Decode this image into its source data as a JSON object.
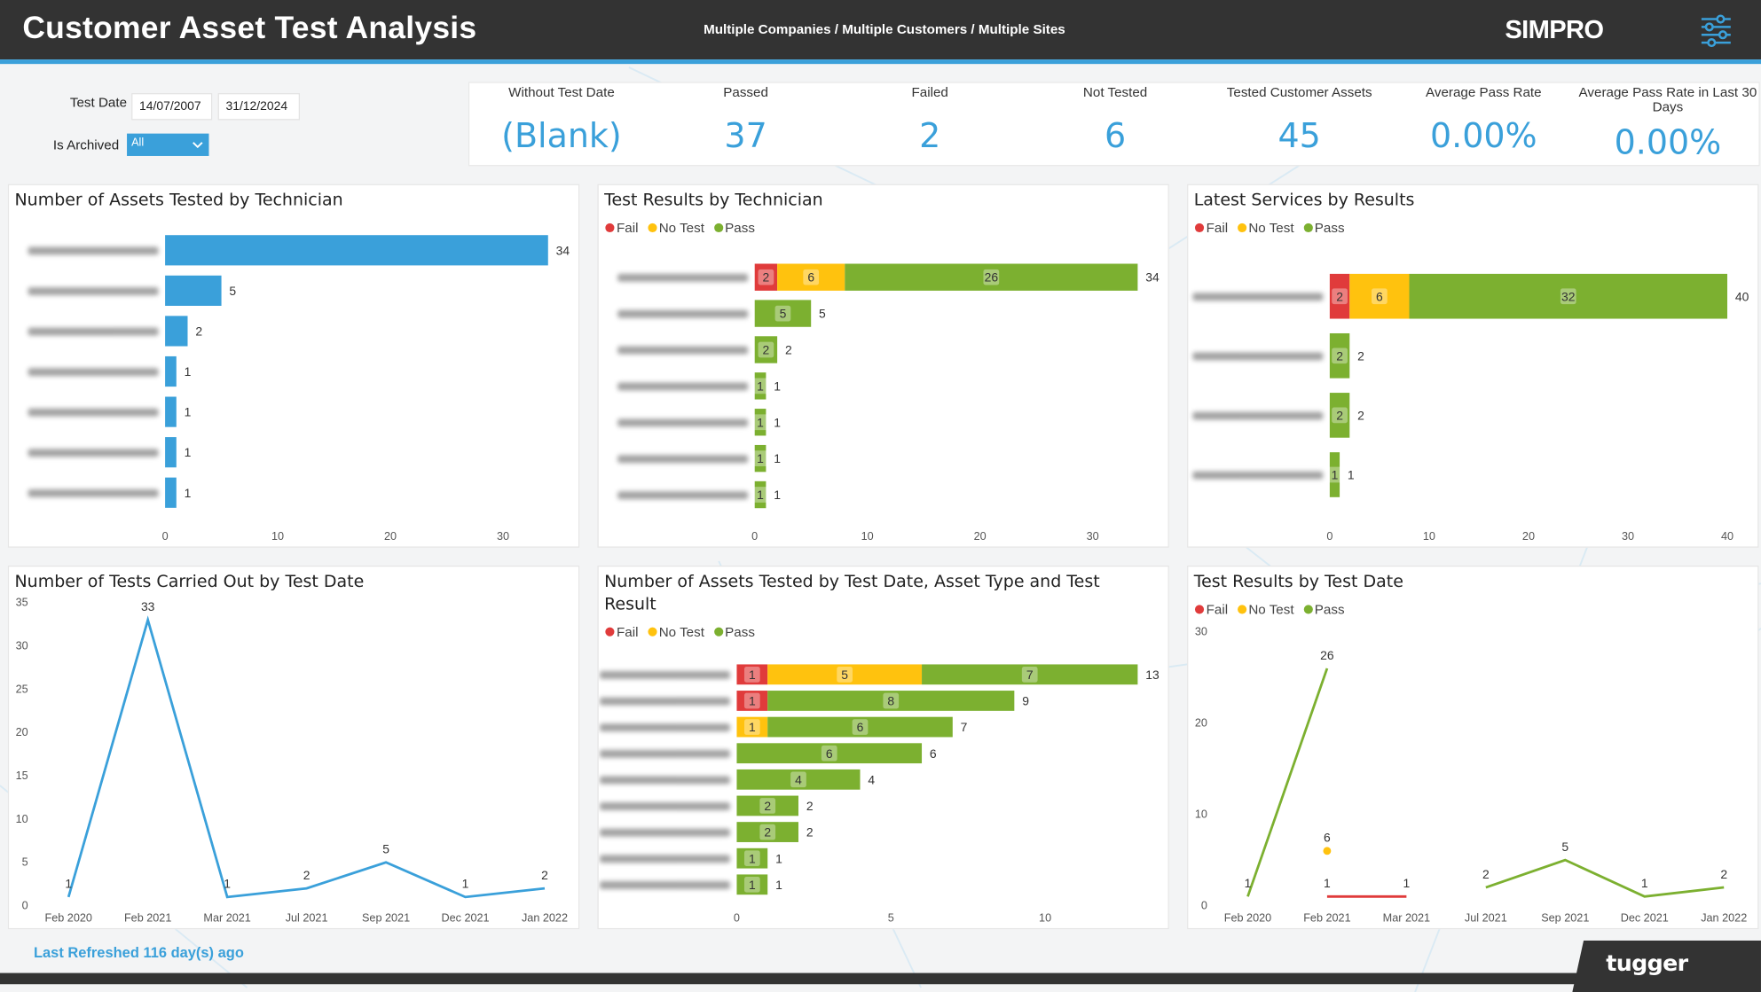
{
  "header": {
    "title": "Customer Asset Test Analysis",
    "filters": "Multiple Companies / Multiple Customers / Multiple Sites",
    "logo": "SIMPRO",
    "menu_icon": "sliders-icon"
  },
  "slicers": {
    "test_date_label": "Test Date",
    "date_from": "14/07/2007",
    "date_to": "31/12/2024",
    "archived_label": "Is Archived",
    "archived_value": "All"
  },
  "kpis": [
    {
      "label": "Without Test Date",
      "value": "(Blank)"
    },
    {
      "label": "Passed",
      "value": "37"
    },
    {
      "label": "Failed",
      "value": "2"
    },
    {
      "label": "Not Tested",
      "value": "6"
    },
    {
      "label": "Tested Customer Assets",
      "value": "45"
    },
    {
      "label": "Average Pass Rate",
      "value": "0.00%"
    },
    {
      "label": "Average Pass Rate in Last 30 Days",
      "value": "0.00%"
    }
  ],
  "colors": {
    "fail": "#e03b3b",
    "notest": "#ffc20e",
    "pass": "#7cb030",
    "blue": "#3aa0da"
  },
  "legend": {
    "fail": "Fail",
    "notest": "No Test",
    "pass": "Pass"
  },
  "footer": {
    "refresh": "Last Refreshed 116 day(s) ago",
    "brand": "tugger"
  },
  "chart_data": [
    {
      "type": "bar",
      "title": "Number of Assets Tested by Technician",
      "categories": [
        "",
        "",
        "",
        "",
        "",
        "",
        ""
      ],
      "values": [
        34,
        5,
        2,
        1,
        1,
        1,
        1
      ],
      "xlim": [
        0,
        34
      ],
      "xticks": [
        0,
        10,
        20,
        30
      ]
    },
    {
      "type": "bar",
      "stacked": true,
      "title": "Test Results by Technician",
      "categories": [
        "",
        "",
        "",
        "",
        "",
        "",
        ""
      ],
      "series": [
        {
          "name": "Fail",
          "values": [
            2,
            0,
            0,
            0,
            0,
            0,
            0
          ]
        },
        {
          "name": "No Test",
          "values": [
            6,
            0,
            0,
            0,
            0,
            0,
            0
          ]
        },
        {
          "name": "Pass",
          "values": [
            26,
            5,
            2,
            1,
            1,
            1,
            1
          ]
        }
      ],
      "totals": [
        34,
        5,
        2,
        1,
        1,
        1,
        1
      ],
      "xlim": [
        0,
        34
      ],
      "xticks": [
        0,
        10,
        20,
        30
      ]
    },
    {
      "type": "bar",
      "stacked": true,
      "title": "Latest Services by Results",
      "categories": [
        "",
        "",
        "",
        ""
      ],
      "series": [
        {
          "name": "Fail",
          "values": [
            2,
            0,
            0,
            0
          ]
        },
        {
          "name": "No Test",
          "values": [
            6,
            0,
            0,
            0
          ]
        },
        {
          "name": "Pass",
          "values": [
            32,
            2,
            2,
            1
          ]
        }
      ],
      "totals": [
        40,
        2,
        2,
        1
      ],
      "xlim": [
        0,
        40
      ],
      "xticks": [
        0,
        10,
        20,
        30,
        40
      ]
    },
    {
      "type": "line",
      "title": "Number of Tests Carried Out by Test Date",
      "x": [
        "Feb 2020",
        "Feb 2021",
        "Mar 2021",
        "Jul 2021",
        "Sep 2021",
        "Dec 2021",
        "Jan 2022"
      ],
      "xticks": [
        "Feb 2020",
        "Feb 2021",
        "Mar 2021",
        "Jul 2021",
        "Sep 2021",
        "Dec 2021",
        "Jan 2022"
      ],
      "values": [
        1,
        33,
        1,
        2,
        5,
        1,
        2
      ],
      "ylim": [
        0,
        35
      ],
      "yticks": [
        0,
        5,
        10,
        15,
        20,
        25,
        30,
        35
      ]
    },
    {
      "type": "bar",
      "stacked": true,
      "title": "Number of Assets Tested by Test Date, Asset Type and Test Result",
      "categories": [
        "",
        "",
        "",
        "",
        "",
        "",
        "",
        "",
        ""
      ],
      "series": [
        {
          "name": "Fail",
          "values": [
            1,
            1,
            0,
            0,
            0,
            0,
            0,
            0,
            0
          ]
        },
        {
          "name": "No Test",
          "values": [
            5,
            0,
            1,
            0,
            0,
            0,
            0,
            0,
            0
          ]
        },
        {
          "name": "Pass",
          "values": [
            7,
            8,
            6,
            6,
            4,
            2,
            2,
            1,
            1
          ]
        }
      ],
      "totals": [
        13,
        9,
        7,
        6,
        4,
        2,
        2,
        1,
        1
      ],
      "xlim": [
        0,
        13
      ],
      "xticks": [
        0,
        5,
        10
      ]
    },
    {
      "type": "line",
      "title": "Test Results by Test Date",
      "x": [
        "Feb 2020",
        "Feb 2021",
        "Mar 2021",
        "Jul 2021",
        "Sep 2021",
        "Dec 2021",
        "Jan 2022"
      ],
      "xticks": [
        "Feb 2020",
        "Feb 2021",
        "Mar 2021",
        "Jul 2021",
        "Sep 2021",
        "Dec 2021",
        "Jan 2022"
      ],
      "series": [
        {
          "name": "Pass",
          "values": [
            1,
            26,
            null,
            2,
            5,
            1,
            2
          ]
        },
        {
          "name": "No Test",
          "values": [
            null,
            6,
            null,
            null,
            null,
            null,
            null
          ]
        },
        {
          "name": "Fail",
          "values": [
            null,
            1,
            1,
            null,
            null,
            null,
            null
          ]
        }
      ],
      "ylim": [
        0,
        30
      ],
      "yticks": [
        0,
        10,
        20,
        30
      ]
    }
  ]
}
